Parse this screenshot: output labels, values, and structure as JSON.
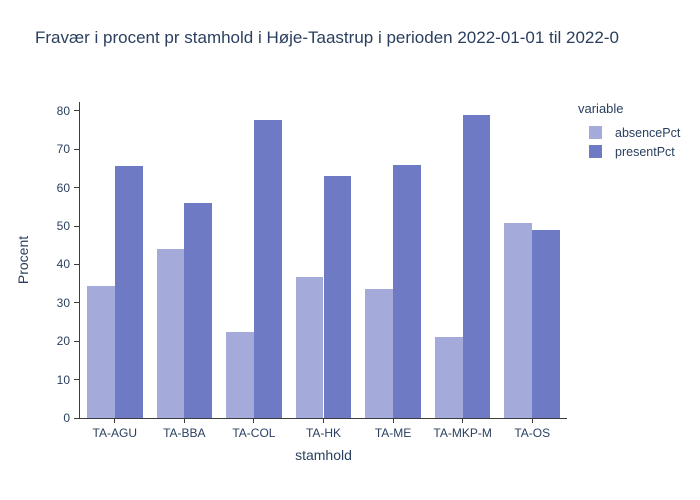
{
  "chart_data": {
    "type": "bar",
    "title": "Fravær i procent pr stamhold i Høje-Taastrup i perioden 2022-01-01 til 2022-0",
    "categories": [
      "TA-AGU",
      "TA-BBA",
      "TA-COL",
      "TA-HK",
      "TA-ME",
      "TA-MKP-M",
      "TA-OS"
    ],
    "series": [
      {
        "name": "absencePct",
        "color": "#a4abdb",
        "values": [
          34.3,
          43.9,
          22.3,
          36.8,
          33.6,
          21.1,
          50.7
        ]
      },
      {
        "name": "presentPct",
        "color": "#6e7bc4",
        "values": [
          65.6,
          56.0,
          77.6,
          63.0,
          66.0,
          78.8,
          49.0
        ]
      }
    ],
    "xlabel": "stamhold",
    "ylabel": "Procent",
    "ylim": [
      0,
      82.3
    ],
    "yticks": [
      0,
      10,
      20,
      30,
      40,
      50,
      60,
      70,
      80
    ],
    "legend_title": "variable",
    "legend_position": "right-top",
    "grid": false,
    "colors": {
      "axis_line": "#3d3d3d",
      "text": "#2a3f5f",
      "background": "#ffffff"
    }
  }
}
